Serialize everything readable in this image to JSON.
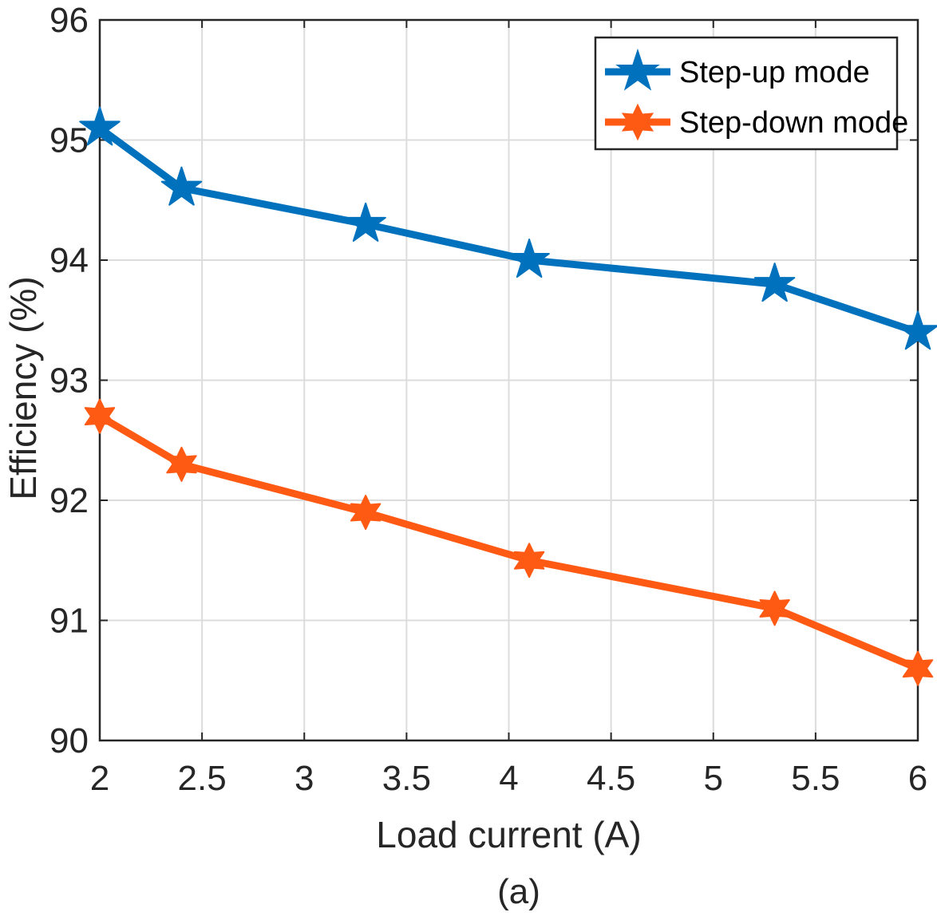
{
  "chart_data": {
    "type": "line",
    "title": "",
    "xlabel": "Load current (A)",
    "ylabel": "Efficiency (%)",
    "caption": "(a)",
    "xlim": [
      2,
      6
    ],
    "ylim": [
      90,
      96
    ],
    "xticks": [
      2,
      2.5,
      3,
      3.5,
      4,
      4.5,
      5,
      5.5,
      6
    ],
    "xtick_labels": [
      "2",
      "2.5",
      "3",
      "3.5",
      "4",
      "4.5",
      "5",
      "5.5",
      "6"
    ],
    "yticks": [
      90,
      91,
      92,
      93,
      94,
      95,
      96
    ],
    "ytick_labels": [
      "90",
      "91",
      "92",
      "93",
      "94",
      "95",
      "96"
    ],
    "grid": true,
    "legend_position": "top-right",
    "series": [
      {
        "name": "Step-up mode",
        "color": "#0072BD",
        "marker": "pentagram",
        "x": [
          2,
          2.4,
          3.3,
          4.1,
          5.3,
          6
        ],
        "y": [
          95.1,
          94.6,
          94.3,
          94.0,
          93.8,
          93.4
        ]
      },
      {
        "name": "Step-down mode",
        "color": "#FF5A14",
        "marker": "hexagram",
        "x": [
          2,
          2.4,
          3.3,
          4.1,
          5.3,
          6
        ],
        "y": [
          92.7,
          92.3,
          91.9,
          91.5,
          91.1,
          90.6
        ]
      }
    ]
  }
}
